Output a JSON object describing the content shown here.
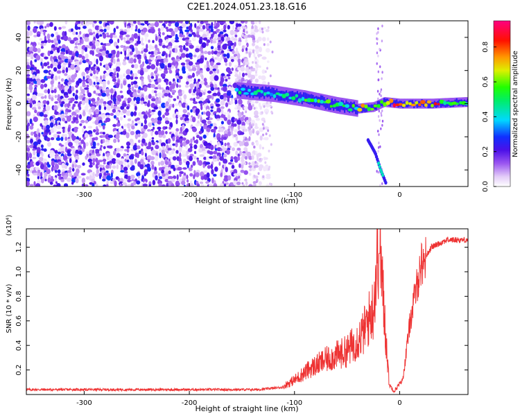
{
  "figure": {
    "title": "C2E1.2024.051.23.18.G16"
  },
  "colors": {
    "spectrum_low": "#e9d7fa",
    "spectrum_mid": "#7b1df0",
    "signal_line": "#ee3333",
    "axis": "#000000"
  },
  "chart_data": [
    {
      "type": "heatmap",
      "title": "",
      "xlabel": "Height of straight line (km)",
      "ylabel": "Frequency (Hz)",
      "xlim": [
        -355,
        65
      ],
      "ylim": [
        -50,
        50
      ],
      "xticks": [
        -300,
        -200,
        -100,
        0
      ],
      "yticks": [
        -40,
        -20,
        0,
        20,
        40
      ],
      "colorbar": {
        "label": "Normalized spectral amplitude",
        "range": [
          0,
          0.95
        ],
        "ticks": [
          0.0,
          0.2,
          0.4,
          0.6,
          0.8
        ],
        "colormap": "white-purple-blue-cyan-green-yellow-red-magenta"
      },
      "noise_region": {
        "x_range": [
          -355,
          -125
        ],
        "y_range": [
          -50,
          50
        ],
        "amplitude": 0.25
      },
      "ridge": [
        {
          "x": -155,
          "y": 8
        },
        {
          "x": -120,
          "y": 6
        },
        {
          "x": -90,
          "y": 3
        },
        {
          "x": -60,
          "y": -1
        },
        {
          "x": -40,
          "y": -3
        },
        {
          "x": -25,
          "y": -2
        },
        {
          "x": -15,
          "y": 1
        },
        {
          "x": 0,
          "y": 0
        },
        {
          "x": 30,
          "y": 0
        },
        {
          "x": 65,
          "y": 1
        }
      ],
      "secondary_branch": [
        {
          "x": -30,
          "y": -22
        },
        {
          "x": -23,
          "y": -30
        },
        {
          "x": -18,
          "y": -40
        },
        {
          "x": -13,
          "y": -48
        }
      ]
    },
    {
      "type": "line",
      "title": "",
      "xlabel": "Height of straight line (km)",
      "ylabel": "SNR (10 * v/v)",
      "y_multiplier": "(x10⁴)",
      "xlim": [
        -355,
        65
      ],
      "ylim": [
        0,
        1.35
      ],
      "xticks": [
        -300,
        -200,
        -100,
        0
      ],
      "yticks": [
        0.2,
        0.4,
        0.6,
        0.8,
        1.0,
        1.2
      ],
      "series": [
        {
          "profile": [
            {
              "x": -355,
              "y": 0.04
            },
            {
              "x": -135,
              "y": 0.04
            },
            {
              "x": -110,
              "y": 0.06
            },
            {
              "x": -100,
              "y": 0.1
            },
            {
              "x": -85,
              "y": 0.18
            },
            {
              "x": -70,
              "y": 0.24
            },
            {
              "x": -50,
              "y": 0.3
            },
            {
              "x": -35,
              "y": 0.42
            },
            {
              "x": -25,
              "y": 0.6
            },
            {
              "x": -19,
              "y": 1.15
            },
            {
              "x": -17,
              "y": 0.8
            },
            {
              "x": -10,
              "y": 0.08
            },
            {
              "x": -5,
              "y": 0.03
            },
            {
              "x": 3,
              "y": 0.12
            },
            {
              "x": 10,
              "y": 0.6
            },
            {
              "x": 20,
              "y": 1.05
            },
            {
              "x": 30,
              "y": 1.2
            },
            {
              "x": 45,
              "y": 1.26
            },
            {
              "x": 65,
              "y": 1.26
            }
          ]
        }
      ]
    }
  ]
}
